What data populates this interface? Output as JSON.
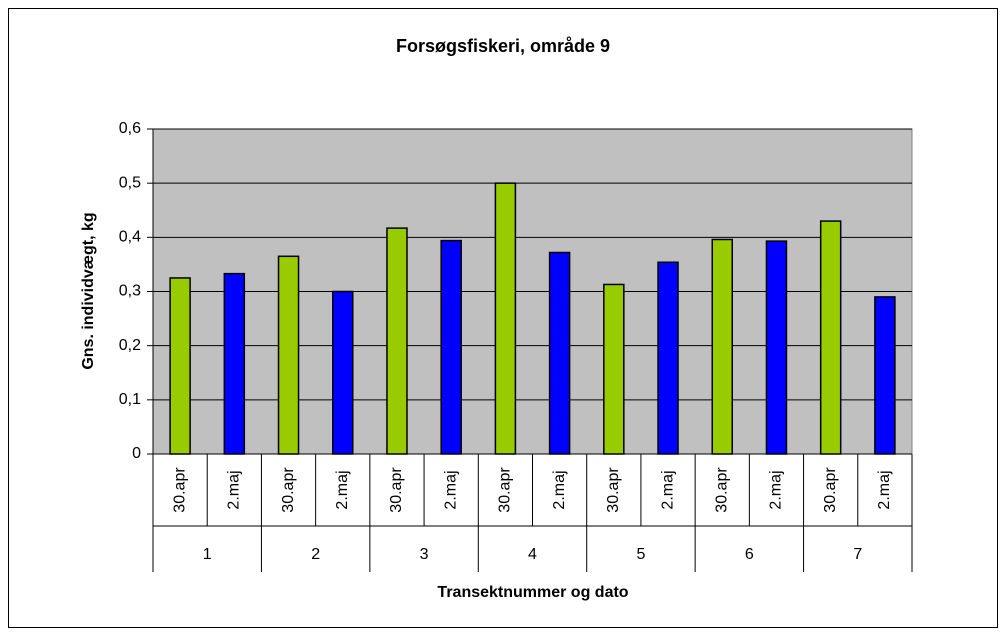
{
  "chart_data": {
    "type": "bar",
    "title": "Forsøgsfiskeri, område 9",
    "x_label": "Transektnummer og dato",
    "y_label": "Gns. individvægt, kg",
    "categories": [
      "30.apr",
      "2.maj",
      "30.apr",
      "2.maj",
      "30.apr",
      "2.maj",
      "30.apr",
      "2.maj",
      "30.apr",
      "2.maj",
      "30.apr",
      "2.maj",
      "30.apr",
      "2.maj"
    ],
    "groups": [
      "1",
      "2",
      "3",
      "4",
      "5",
      "6",
      "7"
    ],
    "values": [
      0.325,
      0.333,
      0.365,
      0.3,
      0.417,
      0.394,
      0.5,
      0.372,
      0.313,
      0.354,
      0.396,
      0.393,
      0.43,
      0.29
    ],
    "bar_colors": [
      "#99cc00",
      "#0000ff",
      "#99cc00",
      "#0000ff",
      "#99cc00",
      "#0000ff",
      "#99cc00",
      "#0000ff",
      "#99cc00",
      "#0000ff",
      "#99cc00",
      "#0000ff",
      "#99cc00",
      "#0000ff"
    ],
    "ylim": [
      0,
      0.6
    ],
    "yticks": [
      0,
      {
        "value": 0.1,
        "label": "0,1"
      },
      {
        "value": 0.2,
        "label": "0,2"
      },
      {
        "value": 0.3,
        "label": "0,3"
      },
      {
        "value": 0.4,
        "label": "0,4"
      },
      {
        "value": 0.5,
        "label": "0,5"
      },
      {
        "value": 0.6,
        "label": "0,6"
      }
    ],
    "grid": true,
    "plot_background": "#c0c0c0"
  }
}
